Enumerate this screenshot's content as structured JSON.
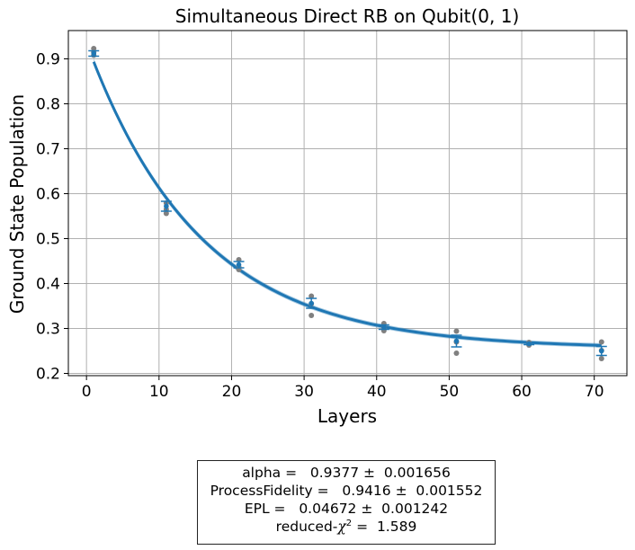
{
  "chart_data": {
    "type": "scatter",
    "title": "Simultaneous Direct RB on Qubit(0, 1)",
    "xlabel": "Layers",
    "ylabel": "Ground State Population",
    "xlim": [
      -2.5,
      74.5
    ],
    "ylim": [
      0.195,
      0.963
    ],
    "xticks": [
      0,
      10,
      20,
      30,
      40,
      50,
      60,
      70
    ],
    "yticks": [
      0.2,
      0.3,
      0.4,
      0.5,
      0.6,
      0.7,
      0.8,
      0.9
    ],
    "ytick_labels": [
      "0.2",
      "0.3",
      "0.4",
      "0.5",
      "0.6",
      "0.7",
      "0.8",
      "0.9"
    ],
    "grid": true,
    "fit": {
      "model": "A*alpha^x + B",
      "alpha": 0.9377,
      "A": 0.6804,
      "B": 0.2553,
      "x_range": [
        1,
        71
      ],
      "band": 0.008,
      "color": "#1f77b4"
    },
    "raw_points": {
      "color": "#808080",
      "x": [
        1,
        1,
        1,
        11,
        11,
        11,
        21,
        21,
        21,
        31,
        31,
        31,
        41,
        41,
        41,
        51,
        51,
        51,
        61,
        61,
        61,
        71,
        71,
        71
      ],
      "y": [
        0.923,
        0.915,
        0.908,
        0.579,
        0.565,
        0.556,
        0.453,
        0.437,
        0.431,
        0.372,
        0.355,
        0.329,
        0.311,
        0.303,
        0.295,
        0.294,
        0.27,
        0.245,
        0.269,
        0.266,
        0.263,
        0.27,
        0.251,
        0.233
      ]
    },
    "means": {
      "color": "#1f77b4",
      "x": [
        1,
        11,
        21,
        31,
        41,
        51,
        61,
        71
      ],
      "y": [
        0.912,
        0.572,
        0.442,
        0.356,
        0.303,
        0.272,
        0.266,
        0.25
      ],
      "err": [
        0.006,
        0.011,
        0.007,
        0.011,
        0.005,
        0.013,
        0.002,
        0.01
      ]
    }
  },
  "stats": {
    "alpha": "alpha =   0.9377 ±  0.001656",
    "process_fidelity": "ProcessFidelity =   0.9416 ±  0.001552",
    "epl": "EPL =   0.04672 ±  0.001242",
    "chi_label": "reduced-",
    "chi_symbol": "χ",
    "chi_exp": "2",
    "chi_value": " =  1.589"
  }
}
